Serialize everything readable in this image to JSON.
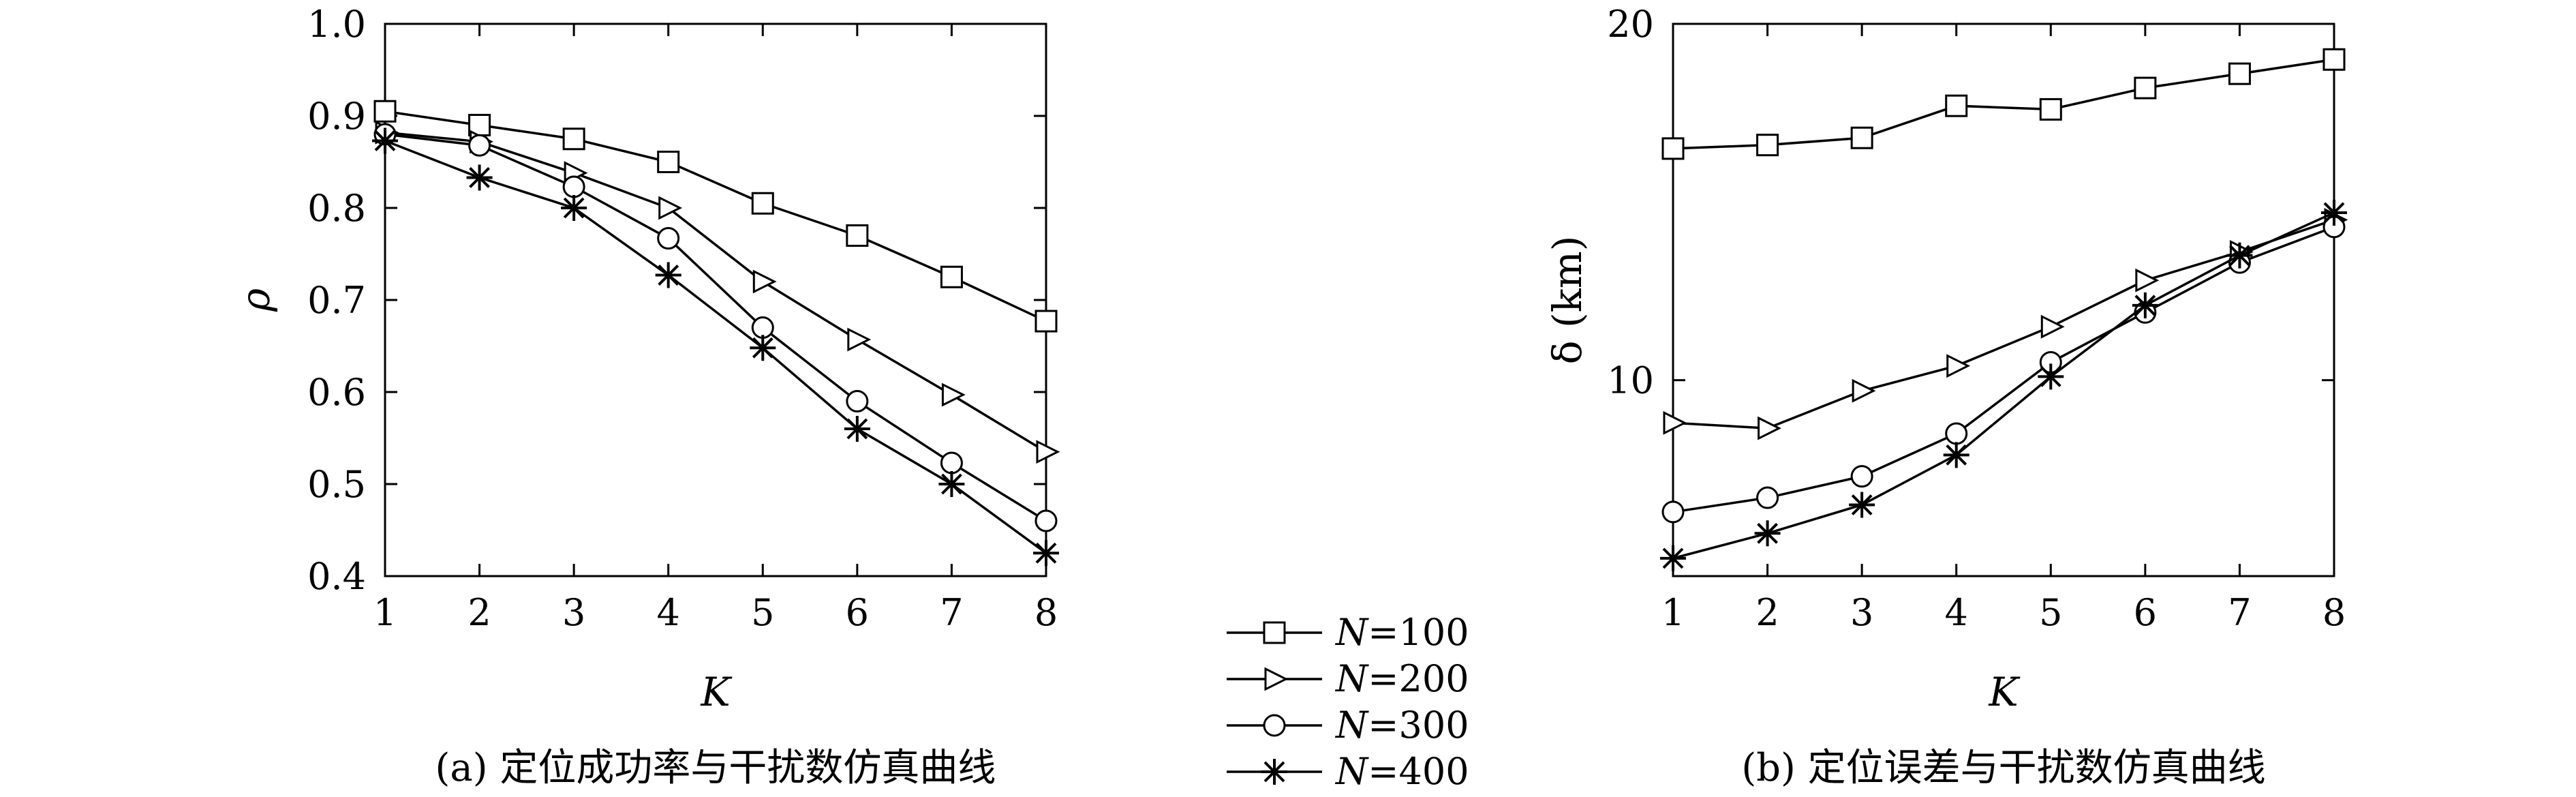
{
  "chart_data": [
    {
      "type": "line",
      "caption": "(a) 定位成功率与干扰数仿真曲线",
      "xlabel": "K",
      "ylabel": "ρ",
      "xlim": [
        1,
        8
      ],
      "ylim": [
        0.4,
        1.0
      ],
      "xticks": [
        "1",
        "2",
        "3",
        "4",
        "5",
        "6",
        "7",
        "8"
      ],
      "yticks": [
        "0.4",
        "0.5",
        "0.6",
        "0.7",
        "0.8",
        "0.9",
        "1.0"
      ],
      "grid": false,
      "x": [
        1,
        2,
        3,
        4,
        5,
        6,
        7,
        8
      ],
      "series": [
        {
          "name": "N=100",
          "marker": "square",
          "values": [
            0.905,
            0.89,
            0.875,
            0.85,
            0.805,
            0.77,
            0.725,
            0.677
          ]
        },
        {
          "name": "N=200",
          "marker": "triangle-right",
          "values": [
            0.882,
            0.872,
            0.838,
            0.8,
            0.72,
            0.657,
            0.597,
            0.535
          ]
        },
        {
          "name": "N=300",
          "marker": "circle",
          "values": [
            0.88,
            0.868,
            0.823,
            0.767,
            0.67,
            0.59,
            0.523,
            0.46
          ]
        },
        {
          "name": "N=400",
          "marker": "star",
          "values": [
            0.873,
            0.833,
            0.8,
            0.727,
            0.648,
            0.56,
            0.5,
            0.425
          ]
        }
      ]
    },
    {
      "type": "line",
      "caption": "(b) 定位误差与干扰数仿真曲线",
      "xlabel": "K",
      "ylabel": "δ (km)",
      "xlim": [
        1,
        8
      ],
      "ylim": [
        4.5,
        20
      ],
      "xticks": [
        "1",
        "2",
        "3",
        "4",
        "5",
        "6",
        "7",
        "8"
      ],
      "yticks": [
        "10",
        "20"
      ],
      "grid": false,
      "x": [
        1,
        2,
        3,
        4,
        5,
        6,
        7,
        8
      ],
      "series": [
        {
          "name": "N=100",
          "marker": "square",
          "values": [
            16.5,
            16.6,
            16.8,
            17.7,
            17.6,
            18.2,
            18.6,
            19.0
          ]
        },
        {
          "name": "N=200",
          "marker": "triangle-right",
          "values": [
            8.8,
            8.65,
            9.7,
            10.4,
            11.5,
            12.8,
            13.6,
            14.5
          ]
        },
        {
          "name": "N=300",
          "marker": "circle",
          "values": [
            6.3,
            6.7,
            7.3,
            8.5,
            10.5,
            11.9,
            13.3,
            14.3
          ]
        },
        {
          "name": "N=400",
          "marker": "star",
          "values": [
            5.0,
            5.7,
            6.5,
            7.9,
            10.1,
            12.1,
            13.5,
            14.7
          ]
        }
      ]
    }
  ],
  "legend": {
    "placement": "between-charts",
    "entries": [
      {
        "prefix": "N",
        "suffix": "=100",
        "marker": "square"
      },
      {
        "prefix": "N",
        "suffix": "=200",
        "marker": "triangle-right"
      },
      {
        "prefix": "N",
        "suffix": "=300",
        "marker": "circle"
      },
      {
        "prefix": "N",
        "suffix": "=400",
        "marker": "star"
      }
    ]
  }
}
